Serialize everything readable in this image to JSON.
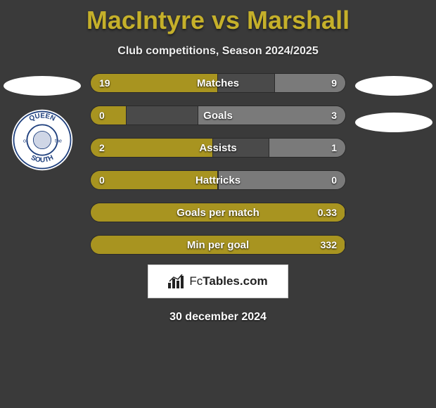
{
  "title": "MacIntyre vs Marshall",
  "subtitle": "Club competitions, Season 2024/2025",
  "date": "30 december 2024",
  "footer_brand": "FcTables.com",
  "colors": {
    "background": "#3a3a3a",
    "accent_left": "#a89420",
    "accent_right": "#7a7a7a",
    "title_color": "#c5b02a",
    "bar_track": "#4a4a4a",
    "text": "#ffffff"
  },
  "left_team": {
    "name": "Queen of the South",
    "badge_outer": "#ffffff",
    "badge_ring": "#1e3f7d",
    "badge_text_top": "QUEEN",
    "badge_text_bottom": "SOUTH",
    "badge_text_left": "of",
    "badge_text_right": "the"
  },
  "bars": [
    {
      "label": "Matches",
      "left_val": "19",
      "right_val": "9",
      "left_pct": 50,
      "right_pct": 28
    },
    {
      "label": "Goals",
      "left_val": "0",
      "right_val": "3",
      "left_pct": 14,
      "right_pct": 58
    },
    {
      "label": "Assists",
      "left_val": "2",
      "right_val": "1",
      "left_pct": 48,
      "right_pct": 30
    },
    {
      "label": "Hattricks",
      "left_val": "0",
      "right_val": "0",
      "left_pct": 50,
      "right_pct": 50
    },
    {
      "label": "Goals per match",
      "left_val": "",
      "right_val": "0.33",
      "left_pct": 100,
      "right_pct": 0
    },
    {
      "label": "Min per goal",
      "left_val": "",
      "right_val": "332",
      "left_pct": 100,
      "right_pct": 0
    }
  ]
}
